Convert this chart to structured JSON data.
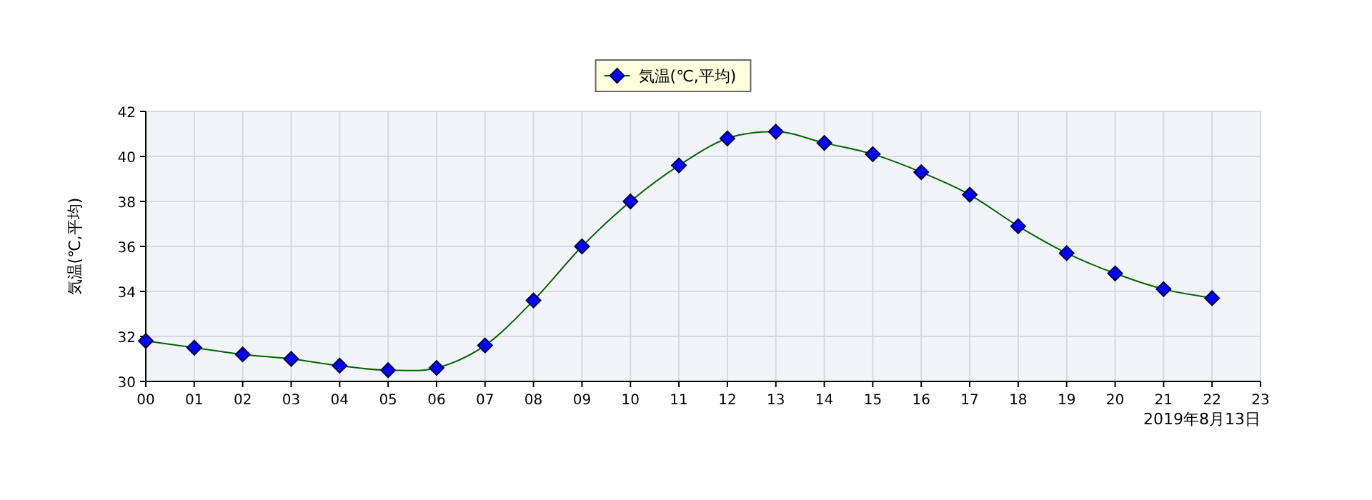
{
  "chart_data": {
    "type": "line",
    "xlabel": "2019年8月13日",
    "ylabel": "気温(℃,平均)",
    "x": [
      0,
      1,
      2,
      3,
      4,
      5,
      6,
      7,
      8,
      9,
      10,
      11,
      12,
      13,
      14,
      15,
      16,
      17,
      18,
      19,
      20,
      21,
      22
    ],
    "series": [
      {
        "name": "気温(℃,平均)",
        "color": "#0000ff",
        "values": [
          31.8,
          31.5,
          31.2,
          31.0,
          30.7,
          30.5,
          30.6,
          31.6,
          33.6,
          36.0,
          38.0,
          39.6,
          40.8,
          41.1,
          40.6,
          40.1,
          39.3,
          38.3,
          36.9,
          35.7,
          34.8,
          34.1,
          33.7
        ]
      }
    ],
    "xlim": [
      0,
      23
    ],
    "xticks": [
      {
        "value": 0,
        "label": "00"
      },
      {
        "value": 1,
        "label": "01"
      },
      {
        "value": 2,
        "label": "02"
      },
      {
        "value": 3,
        "label": "03"
      },
      {
        "value": 4,
        "label": "04"
      },
      {
        "value": 5,
        "label": "05"
      },
      {
        "value": 6,
        "label": "06"
      },
      {
        "value": 7,
        "label": "07"
      },
      {
        "value": 8,
        "label": "08"
      },
      {
        "value": 9,
        "label": "09"
      },
      {
        "value": 10,
        "label": "10"
      },
      {
        "value": 11,
        "label": "11"
      },
      {
        "value": 12,
        "label": "12"
      },
      {
        "value": 13,
        "label": "13"
      },
      {
        "value": 14,
        "label": "14"
      },
      {
        "value": 15,
        "label": "15"
      },
      {
        "value": 16,
        "label": "16"
      },
      {
        "value": 17,
        "label": "17"
      },
      {
        "value": 18,
        "label": "18"
      },
      {
        "value": 19,
        "label": "19"
      },
      {
        "value": 20,
        "label": "20"
      },
      {
        "value": 21,
        "label": "21"
      },
      {
        "value": 22,
        "label": "22"
      },
      {
        "value": 23,
        "label": "23"
      }
    ],
    "ylim": [
      30,
      42
    ],
    "yticks": [
      30,
      32,
      34,
      36,
      38,
      40,
      42
    ],
    "grid": true,
    "legend": "top",
    "marker": "diamond",
    "line_style": "solid"
  }
}
